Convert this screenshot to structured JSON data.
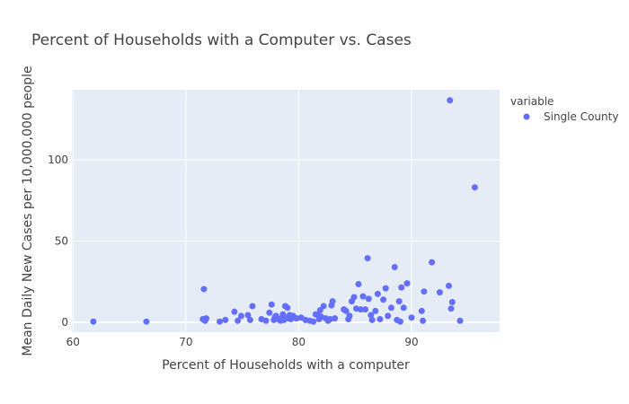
{
  "chart_data": {
    "type": "scatter",
    "title": "Percent of Households with a Computer vs. Cases",
    "xlabel": "Percent of Households with a computer",
    "ylabel": "Mean Daily New Cases per 10,000,000 people",
    "xlim": [
      59.9,
      97.8
    ],
    "ylim": [
      -6,
      143
    ],
    "x_ticks": [
      60,
      70,
      80,
      90
    ],
    "y_ticks": [
      0,
      50,
      100
    ],
    "grid": true,
    "legend": {
      "title": "variable",
      "position": "right"
    },
    "series": [
      {
        "name": "Single County",
        "color": "#636efa",
        "x": [
          61.8,
          66.5,
          71.5,
          71.6,
          71.7,
          71.8,
          73.0,
          73.5,
          74.3,
          74.6,
          74.9,
          75.5,
          75.7,
          75.9,
          76.7,
          77.1,
          77.4,
          77.6,
          77.8,
          77.9,
          78.0,
          78.2,
          78.4,
          78.5,
          78.6,
          78.7,
          78.8,
          78.9,
          79.0,
          79.1,
          79.2,
          79.3,
          79.5,
          79.8,
          80.2,
          80.6,
          81.0,
          81.3,
          81.5,
          81.7,
          81.8,
          81.9,
          82.0,
          82.2,
          82.4,
          82.6,
          82.8,
          82.9,
          83.0,
          83.2,
          84.0,
          84.2,
          84.4,
          84.5,
          84.7,
          84.9,
          85.1,
          85.3,
          85.5,
          85.7,
          85.9,
          86.1,
          86.2,
          86.4,
          86.5,
          86.8,
          87.0,
          87.2,
          87.5,
          87.7,
          87.9,
          88.2,
          88.5,
          88.7,
          88.9,
          89.0,
          89.1,
          89.3,
          89.6,
          90.0,
          90.9,
          91.0,
          91.1,
          91.8,
          92.5,
          93.3,
          93.4,
          93.5,
          93.6,
          94.3,
          95.6
        ],
        "y": [
          0.5,
          0.5,
          2.0,
          20.5,
          1.0,
          2.5,
          0.5,
          1.5,
          6.5,
          1.0,
          4.0,
          4.5,
          1.5,
          10.0,
          2.0,
          1.0,
          6.0,
          11.0,
          1.5,
          3.5,
          4.0,
          2.0,
          1.0,
          2.5,
          5.0,
          1.5,
          10.0,
          3.0,
          9.0,
          2.5,
          4.5,
          2.0,
          4.0,
          2.5,
          3.0,
          1.5,
          1.0,
          0.5,
          5.0,
          4.5,
          2.0,
          7.5,
          3.5,
          10.0,
          2.5,
          1.0,
          2.0,
          10.5,
          13.0,
          2.5,
          8.0,
          7.0,
          2.0,
          4.0,
          13.0,
          15.5,
          8.5,
          23.5,
          8.0,
          16.0,
          8.0,
          39.5,
          14.5,
          4.5,
          1.5,
          7.0,
          17.5,
          2.0,
          14.0,
          21.0,
          4.0,
          9.0,
          34.0,
          1.5,
          13.0,
          0.5,
          21.5,
          9.0,
          24.0,
          3.0,
          7.0,
          1.0,
          19.0,
          37.0,
          18.5,
          22.5,
          136.5,
          8.5,
          12.5,
          1.0,
          83.0
        ]
      }
    ]
  }
}
